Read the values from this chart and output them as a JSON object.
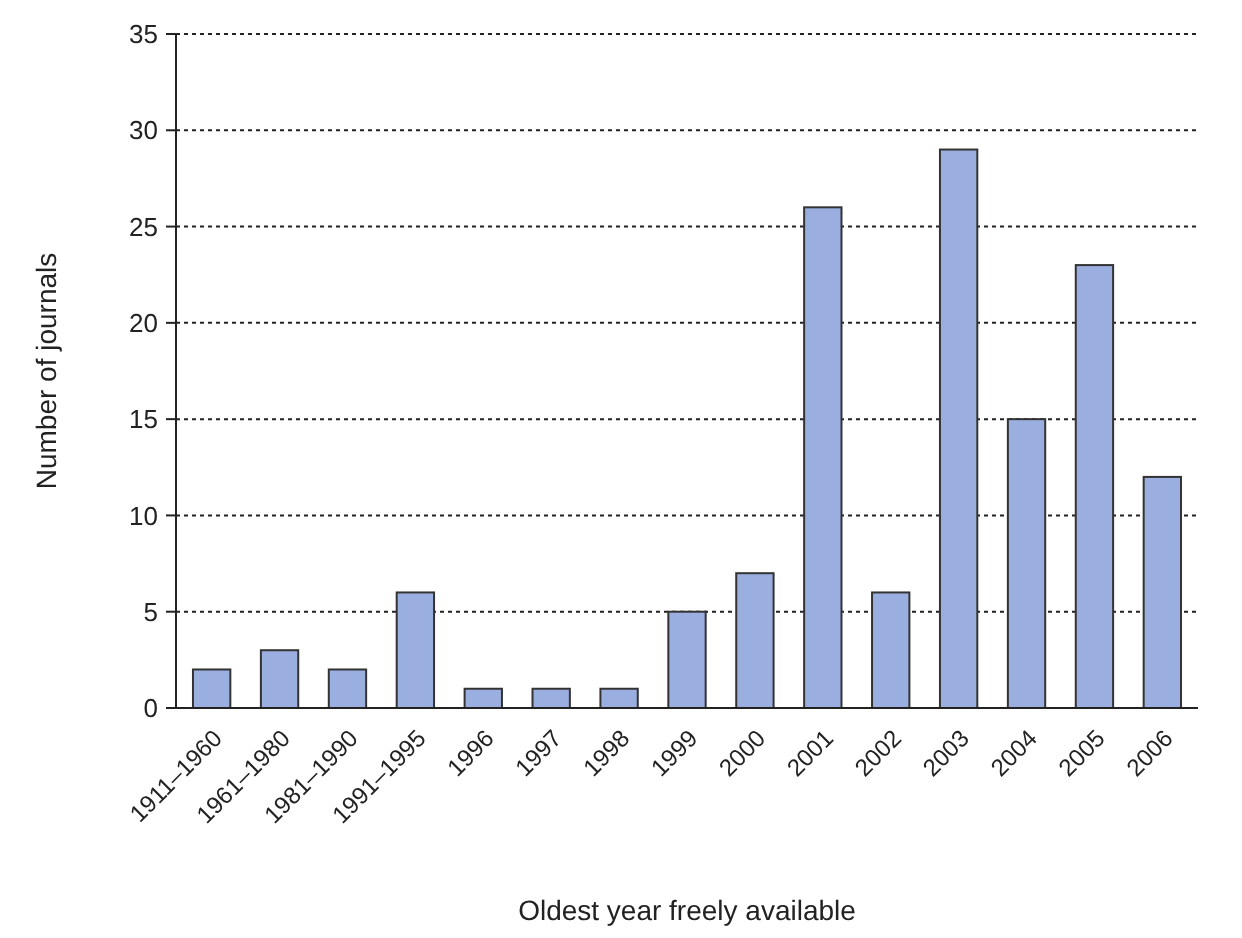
{
  "chart_data": {
    "type": "bar",
    "xlabel": "Oldest year freely available",
    "ylabel": "Number of journals",
    "categories": [
      "1911–1960",
      "1961–1980",
      "1981–1990",
      "1991–1995",
      "1996",
      "1997",
      "1998",
      "1999",
      "2000",
      "2001",
      "2002",
      "2003",
      "2004",
      "2005",
      "2006"
    ],
    "values": [
      2,
      3,
      2,
      6,
      1,
      1,
      1,
      5,
      7,
      26,
      6,
      29,
      15,
      23,
      12
    ],
    "color": "#9aaee0",
    "ylim": [
      0,
      35
    ],
    "yticks": [
      0,
      5,
      10,
      15,
      20,
      25,
      30,
      35
    ],
    "grid": "y",
    "line_style": "dotted"
  }
}
